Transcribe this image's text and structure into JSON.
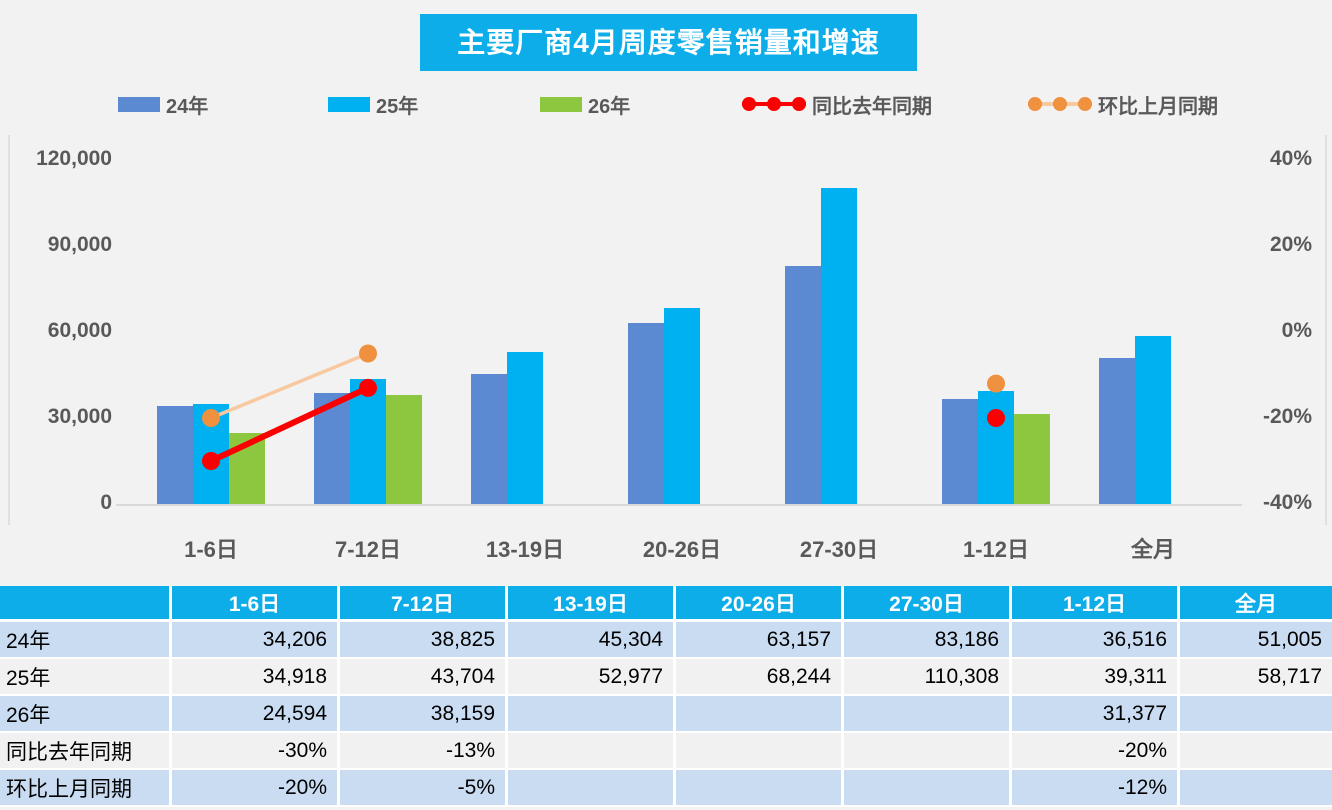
{
  "title": "主要厂商4月周度零售销量和增速",
  "colors": {
    "accent_cyan": "#0cade8",
    "bar_blue": "#5b8ad2",
    "bar_cyan": "#00b1f1",
    "bar_green": "#8dc63f",
    "line_red": "#fb0000",
    "marker_orange": "#f0913f",
    "line_peach": "#f8c9a0",
    "axis_text": "#595959",
    "row_blue": "#c9dcf2",
    "row_gray": "#f1f1f1",
    "background": "#f2f2f2"
  },
  "legend": {
    "items": [
      {
        "label": "24年",
        "swatch": "bar",
        "color": "#5b8ad2",
        "line_color": "#5b8ad2"
      },
      {
        "label": "25年",
        "swatch": "bar",
        "color": "#00b1f1",
        "line_color": "#00b1f1"
      },
      {
        "label": "26年",
        "swatch": "bar",
        "color": "#8dc63f",
        "line_color": "#8dc63f"
      },
      {
        "label": "同比去年同期",
        "swatch": "line",
        "color": "#fb0000",
        "line_color": "#fb0000"
      },
      {
        "label": "环比上月同期",
        "swatch": "line",
        "color": "#f0913f",
        "line_color": "#f8c9a0"
      }
    ]
  },
  "chart_data": {
    "type": "bar+line combo",
    "title": "主要厂商4月周度零售销量和增速",
    "categories": [
      "1-6日",
      "7-12日",
      "13-19日",
      "20-26日",
      "27-30日",
      "1-12日",
      "全月"
    ],
    "series": [
      {
        "name": "24年",
        "type": "bar",
        "axis": "left",
        "color": "#5b8ad2",
        "values": [
          34206,
          38825,
          45304,
          63157,
          83186,
          36516,
          51005
        ]
      },
      {
        "name": "25年",
        "type": "bar",
        "axis": "left",
        "color": "#00b1f1",
        "values": [
          34918,
          43704,
          52977,
          68244,
          110308,
          39311,
          58717
        ]
      },
      {
        "name": "26年",
        "type": "bar",
        "axis": "left",
        "color": "#8dc63f",
        "values": [
          24594,
          38159,
          null,
          null,
          null,
          31377,
          null
        ]
      },
      {
        "name": "同比去年同期",
        "type": "line",
        "axis": "right",
        "color": "#fb0000",
        "line_color": "#fb0000",
        "values": [
          -30,
          -13,
          null,
          null,
          null,
          -20,
          null
        ]
      },
      {
        "name": "环比上月同期",
        "type": "line",
        "axis": "right",
        "color": "#f0913f",
        "line_color": "#f8c9a0",
        "values": [
          -20,
          -5,
          null,
          null,
          null,
          -12,
          null
        ]
      }
    ],
    "left_axis": {
      "min": 0,
      "max": 120000,
      "ticks": [
        "120,000",
        "90,000",
        "60,000",
        "30,000",
        "0"
      ]
    },
    "right_axis": {
      "min": -40,
      "max": 40,
      "ticks": [
        "40%",
        "20%",
        "0%",
        "-20%",
        "-40%"
      ]
    },
    "grid": false,
    "legend_position": "top"
  },
  "table": {
    "header": [
      "",
      "1-6日",
      "7-12日",
      "13-19日",
      "20-26日",
      "27-30日",
      "1-12日",
      "全月"
    ],
    "rows": [
      {
        "label": "24年",
        "cells": [
          "34,206",
          "38,825",
          "45,304",
          "63,157",
          "83,186",
          "36,516",
          "51,005"
        ]
      },
      {
        "label": "25年",
        "cells": [
          "34,918",
          "43,704",
          "52,977",
          "68,244",
          "110,308",
          "39,311",
          "58,717"
        ]
      },
      {
        "label": "26年",
        "cells": [
          "24,594",
          "38,159",
          "",
          "",
          "",
          "31,377",
          ""
        ]
      },
      {
        "label": "同比去年同期",
        "cells": [
          "-30%",
          "-13%",
          "",
          "",
          "",
          "-20%",
          ""
        ]
      },
      {
        "label": "环比上月同期",
        "cells": [
          "-20%",
          "-5%",
          "",
          "",
          "",
          "-12%",
          ""
        ]
      }
    ]
  }
}
